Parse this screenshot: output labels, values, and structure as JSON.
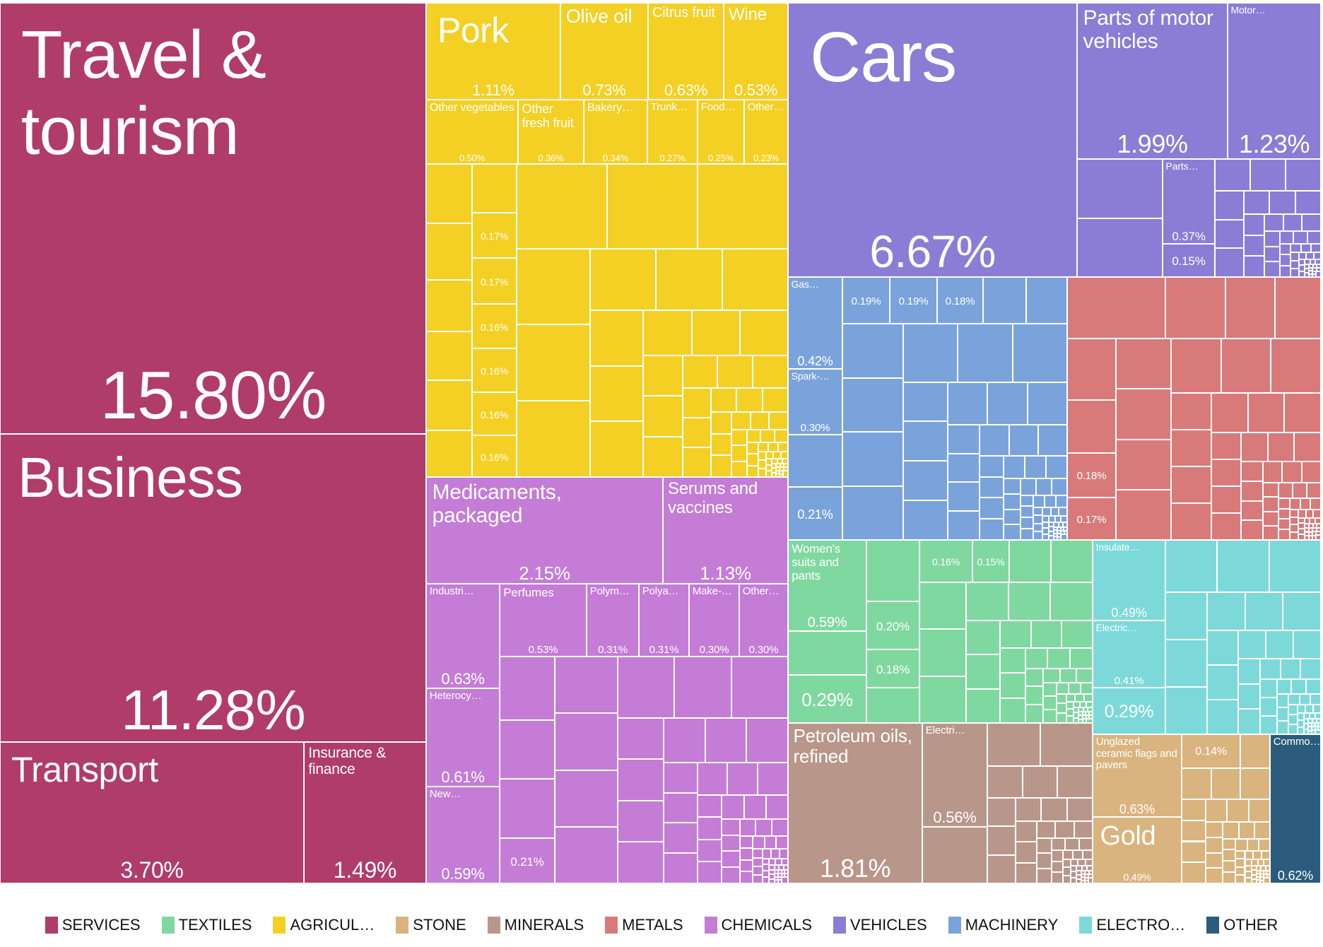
{
  "chart_data": {
    "type": "treemap",
    "title": "",
    "legend_position": "bottom",
    "categories": [
      {
        "name": "SERVICES",
        "color": "#b03c69"
      },
      {
        "name": "TEXTILES",
        "color": "#7fd8a0"
      },
      {
        "name": "AGRICUL…",
        "color": "#f4d024"
      },
      {
        "name": "STONE",
        "color": "#d9b47e"
      },
      {
        "name": "MINERALS",
        "color": "#b9968a"
      },
      {
        "name": "METALS",
        "color": "#d97a7a"
      },
      {
        "name": "CHEMICALS",
        "color": "#c47cd6"
      },
      {
        "name": "VEHICLES",
        "color": "#8b7dd6"
      },
      {
        "name": "MACHINERY",
        "color": "#7ba3db"
      },
      {
        "name": "ELECTRO…",
        "color": "#7dd9d9"
      },
      {
        "name": "OTHER",
        "color": "#2b5c7d"
      }
    ],
    "items": [
      {
        "category": "SERVICES",
        "label": "Travel & tourism",
        "share": "15.80%",
        "value": 15.8
      },
      {
        "category": "SERVICES",
        "label": "Business",
        "share": "11.28%",
        "value": 11.28
      },
      {
        "category": "SERVICES",
        "label": "Transport",
        "share": "3.70%",
        "value": 3.7
      },
      {
        "category": "SERVICES",
        "label": "Insurance & finance",
        "share": "1.49%",
        "value": 1.49
      },
      {
        "category": "AGRICUL…",
        "label": "Pork",
        "share": "1.11%",
        "value": 1.11
      },
      {
        "category": "AGRICUL…",
        "label": "Olive oil",
        "share": "0.73%",
        "value": 0.73
      },
      {
        "category": "AGRICUL…",
        "label": "Citrus fruit",
        "share": "0.63%",
        "value": 0.63
      },
      {
        "category": "AGRICUL…",
        "label": "Wine",
        "share": "0.53%",
        "value": 0.53
      },
      {
        "category": "AGRICUL…",
        "label": "Other vegetables",
        "share": "0.50%",
        "value": 0.5
      },
      {
        "category": "AGRICUL…",
        "label": "Other fresh fruit",
        "share": "0.36%",
        "value": 0.36
      },
      {
        "category": "AGRICUL…",
        "label": "Bakery…",
        "share": "0.34%",
        "value": 0.34
      },
      {
        "category": "AGRICUL…",
        "label": "Trunk…",
        "share": "0.27%",
        "value": 0.27
      },
      {
        "category": "AGRICUL…",
        "label": "Food…",
        "share": "0.25%",
        "value": 0.25
      },
      {
        "category": "AGRICUL…",
        "label": "Other…",
        "share": "0.23%",
        "value": 0.23
      },
      {
        "category": "AGRICUL…",
        "label": "",
        "share": "0.17%",
        "value": 0.17
      },
      {
        "category": "AGRICUL…",
        "label": "",
        "share": "0.17%",
        "value": 0.17
      },
      {
        "category": "AGRICUL…",
        "label": "",
        "share": "0.16%",
        "value": 0.16
      },
      {
        "category": "AGRICUL…",
        "label": "",
        "share": "0.16%",
        "value": 0.16
      },
      {
        "category": "AGRICUL…",
        "label": "",
        "share": "0.16%",
        "value": 0.16
      },
      {
        "category": "AGRICUL…",
        "label": "",
        "share": "0.16%",
        "value": 0.16
      },
      {
        "category": "CHEMICALS",
        "label": "Medicaments, packaged",
        "share": "2.15%",
        "value": 2.15
      },
      {
        "category": "CHEMICALS",
        "label": "Serums and vaccines",
        "share": "1.13%",
        "value": 1.13
      },
      {
        "category": "CHEMICALS",
        "label": "Industri…",
        "share": "0.63%",
        "value": 0.63
      },
      {
        "category": "CHEMICALS",
        "label": "Heterocy…",
        "share": "0.61%",
        "value": 0.61
      },
      {
        "category": "CHEMICALS",
        "label": "New…",
        "share": "0.59%",
        "value": 0.59
      },
      {
        "category": "CHEMICALS",
        "label": "Perfumes",
        "share": "0.53%",
        "value": 0.53
      },
      {
        "category": "CHEMICALS",
        "label": "Polym…",
        "share": "0.31%",
        "value": 0.31
      },
      {
        "category": "CHEMICALS",
        "label": "Polya…",
        "share": "0.31%",
        "value": 0.31
      },
      {
        "category": "CHEMICALS",
        "label": "Make-…",
        "share": "0.30%",
        "value": 0.3
      },
      {
        "category": "CHEMICALS",
        "label": "Other…",
        "share": "0.30%",
        "value": 0.3
      },
      {
        "category": "CHEMICALS",
        "label": "",
        "share": "0.21%",
        "value": 0.21
      },
      {
        "category": "VEHICLES",
        "label": "Cars",
        "share": "6.67%",
        "value": 6.67
      },
      {
        "category": "VEHICLES",
        "label": "Parts of motor vehicles",
        "share": "1.99%",
        "value": 1.99
      },
      {
        "category": "VEHICLES",
        "label": "Motor…",
        "share": "1.23%",
        "value": 1.23
      },
      {
        "category": "VEHICLES",
        "label": "Parts…",
        "share": "0.37%",
        "value": 0.37
      },
      {
        "category": "VEHICLES",
        "label": "",
        "share": "0.15%",
        "value": 0.15
      },
      {
        "category": "MACHINERY",
        "label": "Gas…",
        "share": "0.42%",
        "value": 0.42
      },
      {
        "category": "MACHINERY",
        "label": "Spark-…",
        "share": "0.30%",
        "value": 0.3
      },
      {
        "category": "MACHINERY",
        "label": "",
        "share": "0.21%",
        "value": 0.21
      },
      {
        "category": "MACHINERY",
        "label": "",
        "share": "0.19%",
        "value": 0.19
      },
      {
        "category": "MACHINERY",
        "label": "",
        "share": "0.19%",
        "value": 0.19
      },
      {
        "category": "MACHINERY",
        "label": "",
        "share": "0.18%",
        "value": 0.18
      },
      {
        "category": "METALS",
        "label": "",
        "share": "0.18%",
        "value": 0.18
      },
      {
        "category": "METALS",
        "label": "",
        "share": "0.17%",
        "value": 0.17
      },
      {
        "category": "TEXTILES",
        "label": "Women's suits and pants",
        "share": "0.59%",
        "value": 0.59
      },
      {
        "category": "TEXTILES",
        "label": "",
        "share": "0.29%",
        "value": 0.29
      },
      {
        "category": "TEXTILES",
        "label": "",
        "share": "0.20%",
        "value": 0.2
      },
      {
        "category": "TEXTILES",
        "label": "",
        "share": "0.18%",
        "value": 0.18
      },
      {
        "category": "TEXTILES",
        "label": "",
        "share": "0.16%",
        "value": 0.16
      },
      {
        "category": "TEXTILES",
        "label": "",
        "share": "0.15%",
        "value": 0.15
      },
      {
        "category": "ELECTRO…",
        "label": "Insulate…",
        "share": "0.49%",
        "value": 0.49
      },
      {
        "category": "ELECTRO…",
        "label": "Electric…",
        "share": "0.41%",
        "value": 0.41
      },
      {
        "category": "ELECTRO…",
        "label": "",
        "share": "0.29%",
        "value": 0.29
      },
      {
        "category": "MINERALS",
        "label": "Petroleum oils, refined",
        "share": "1.81%",
        "value": 1.81
      },
      {
        "category": "MINERALS",
        "label": "Electri…",
        "share": "0.56%",
        "value": 0.56
      },
      {
        "category": "STONE",
        "label": "Unglazed ceramic flags and pavers",
        "share": "0.63%",
        "value": 0.63
      },
      {
        "category": "STONE",
        "label": "Gold",
        "share": "0.49%",
        "value": 0.49
      },
      {
        "category": "STONE",
        "label": "",
        "share": "0.14%",
        "value": 0.14
      },
      {
        "category": "OTHER",
        "label": "Commo…",
        "share": "0.62%",
        "value": 0.62
      }
    ]
  }
}
